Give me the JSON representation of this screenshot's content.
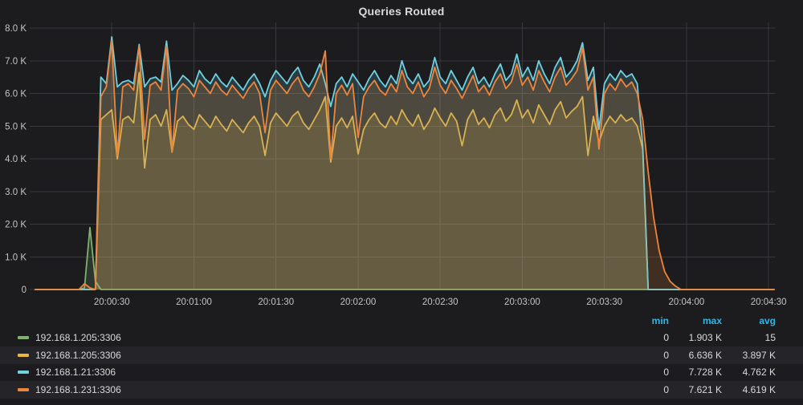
{
  "panel": {
    "title": "Queries Routed"
  },
  "colors": {
    "background": "#1c1c1e",
    "grid": "#39393d",
    "axis_text": "#c3c4c6",
    "legend_header": "#33b5e5",
    "green": "#7EB26D",
    "yellow": "#EAB839",
    "cyan": "#6ED0E0",
    "orange": "#EF843C"
  },
  "chart_data": {
    "type": "area",
    "title": "Queries Routed",
    "xlabel": "",
    "ylabel": "",
    "unit": "K",
    "ylim": [
      0,
      8000
    ],
    "grid": true,
    "legend_position": "bottom-table",
    "x_start_label": "20:00:00",
    "interval_sec": 2,
    "y_ticks": [
      {
        "v": 0,
        "label": "0"
      },
      {
        "v": 1,
        "label": "1.0 K"
      },
      {
        "v": 2,
        "label": "2.0 K"
      },
      {
        "v": 3,
        "label": "3.0 K"
      },
      {
        "v": 4,
        "label": "4.0 K"
      },
      {
        "v": 5,
        "label": "5.0 K"
      },
      {
        "v": 6,
        "label": "6.0 K"
      },
      {
        "v": 7,
        "label": "7.0 K"
      },
      {
        "v": 8,
        "label": "8.0 K"
      }
    ],
    "x_ticks": [
      {
        "t": 30,
        "label": "20:00:30"
      },
      {
        "t": 60,
        "label": "20:01:00"
      },
      {
        "t": 90,
        "label": "20:01:30"
      },
      {
        "t": 120,
        "label": "20:02:00"
      },
      {
        "t": 150,
        "label": "20:02:30"
      },
      {
        "t": 180,
        "label": "20:03:00"
      },
      {
        "t": 210,
        "label": "20:03:30"
      },
      {
        "t": 240,
        "label": "20:04:00"
      },
      {
        "t": 270,
        "label": "20:04:30"
      }
    ],
    "series": [
      {
        "name": "192.168.1.205:3306",
        "color": "#7EB26D",
        "values": [
          null,
          0,
          0,
          0,
          0,
          0,
          0,
          0,
          0,
          0,
          0.05,
          1.9,
          0.25,
          0,
          0,
          0,
          0,
          0,
          0,
          0,
          0,
          0,
          0,
          0,
          0,
          0,
          0,
          0,
          0,
          0,
          0,
          0,
          0,
          0,
          0,
          0,
          0,
          0,
          0,
          0,
          0,
          0,
          0,
          0,
          0,
          0,
          0,
          0,
          0,
          0,
          0,
          0,
          0,
          0,
          0,
          0,
          0,
          0,
          0,
          0,
          0,
          0,
          0,
          0,
          0,
          0,
          0,
          0,
          0,
          0,
          0,
          0,
          0,
          0,
          0,
          0,
          0,
          0,
          0,
          0,
          0,
          0,
          0,
          0,
          0,
          0,
          0,
          0,
          0,
          0,
          0,
          0,
          0,
          0,
          0,
          0,
          0,
          0,
          0,
          0,
          0,
          0,
          0,
          0,
          0,
          0,
          0,
          0,
          0,
          0,
          0,
          0,
          0,
          0,
          0,
          0,
          0,
          0,
          0,
          0,
          0,
          0,
          0,
          0,
          0,
          0,
          0,
          0,
          0,
          0,
          0,
          0,
          0,
          0,
          0,
          0
        ]
      },
      {
        "name": "192.168.1.205:3306",
        "color": "#EAB839",
        "values": [
          null,
          0,
          0,
          0,
          0,
          0,
          0,
          0,
          0,
          0,
          0,
          0,
          0,
          5.2,
          5.35,
          5.5,
          4.0,
          5.2,
          5.3,
          5.1,
          6.64,
          3.72,
          5.2,
          5.35,
          5.0,
          5.5,
          4.2,
          5.15,
          5.3,
          5.05,
          4.9,
          5.35,
          5.15,
          4.95,
          5.3,
          5.05,
          4.85,
          5.2,
          5.0,
          4.8,
          5.1,
          5.3,
          5.0,
          4.1,
          5.1,
          5.4,
          5.2,
          5.0,
          5.3,
          5.45,
          5.1,
          4.9,
          5.2,
          5.5,
          5.9,
          3.9,
          5.0,
          5.25,
          4.95,
          5.3,
          4.15,
          4.9,
          5.2,
          5.4,
          5.1,
          4.95,
          5.3,
          5.05,
          5.5,
          5.2,
          5.0,
          5.35,
          4.9,
          5.15,
          5.55,
          5.25,
          5.0,
          5.4,
          5.15,
          4.4,
          5.2,
          5.5,
          5.05,
          5.25,
          4.95,
          5.35,
          5.55,
          5.15,
          5.35,
          5.8,
          5.25,
          5.5,
          5.1,
          5.65,
          5.35,
          5.05,
          5.5,
          5.75,
          5.25,
          5.45,
          5.6,
          5.9,
          4.1,
          5.3,
          4.5,
          5.0,
          5.3,
          5.1,
          5.35,
          5.15,
          5.25,
          5.0,
          4.3,
          0,
          0,
          0,
          0,
          0,
          0,
          0,
          0,
          0,
          0,
          0,
          0,
          0,
          0,
          0,
          0,
          0,
          0,
          0,
          0,
          0,
          0,
          0,
          0
        ]
      },
      {
        "name": "192.168.1.21:3306",
        "color": "#6ED0E0",
        "values": [
          null,
          0,
          0,
          0,
          0,
          0,
          0,
          0,
          0,
          0,
          0,
          0,
          0,
          6.5,
          6.3,
          7.73,
          6.2,
          6.35,
          6.4,
          6.3,
          7.5,
          6.2,
          6.45,
          6.5,
          6.35,
          7.6,
          6.1,
          6.3,
          6.55,
          6.4,
          6.2,
          6.7,
          6.45,
          6.3,
          6.6,
          6.35,
          6.2,
          6.5,
          6.3,
          6.1,
          6.4,
          6.6,
          6.3,
          5.9,
          6.4,
          6.7,
          6.5,
          6.3,
          6.6,
          6.8,
          6.4,
          6.2,
          6.5,
          6.9,
          6.3,
          5.6,
          6.3,
          6.5,
          6.2,
          6.6,
          6.35,
          6.1,
          6.45,
          6.7,
          6.4,
          6.2,
          6.55,
          6.3,
          7.0,
          6.5,
          6.3,
          6.6,
          6.2,
          6.4,
          7.1,
          6.5,
          6.3,
          6.7,
          6.4,
          6.1,
          6.5,
          6.8,
          6.3,
          6.5,
          6.2,
          6.6,
          6.9,
          6.4,
          6.6,
          7.2,
          6.5,
          6.8,
          6.4,
          7.0,
          6.6,
          6.3,
          6.8,
          7.1,
          6.5,
          6.7,
          7.0,
          7.55,
          6.4,
          6.8,
          4.9,
          6.3,
          6.6,
          6.4,
          6.7,
          6.5,
          6.6,
          6.3,
          4.4,
          0,
          0,
          0,
          0,
          0,
          0,
          0,
          0,
          0,
          0,
          0,
          0,
          0,
          0,
          0,
          0,
          0,
          0,
          0,
          0,
          0,
          0,
          0,
          0
        ]
      },
      {
        "name": "192.168.1.231:3306",
        "color": "#EF843C",
        "values": [
          null,
          0,
          0,
          0,
          0,
          0,
          0,
          0,
          0,
          0,
          0.18,
          0.05,
          0,
          5.9,
          6.2,
          7.62,
          4.1,
          6.2,
          6.3,
          6.1,
          7.45,
          4.6,
          6.25,
          6.35,
          6.1,
          7.45,
          4.2,
          6.1,
          6.3,
          6.15,
          5.9,
          6.4,
          6.2,
          6.0,
          6.35,
          6.1,
          5.95,
          6.25,
          6.05,
          5.85,
          6.15,
          6.35,
          6.0,
          4.8,
          6.1,
          6.4,
          6.2,
          6.0,
          6.3,
          6.5,
          6.1,
          5.9,
          6.2,
          6.6,
          7.3,
          4.0,
          6.0,
          6.25,
          5.95,
          6.3,
          4.65,
          5.9,
          6.2,
          6.4,
          6.1,
          5.95,
          6.3,
          6.05,
          6.7,
          6.2,
          6.0,
          6.35,
          5.9,
          6.15,
          6.8,
          6.25,
          6.0,
          6.4,
          6.15,
          5.85,
          6.2,
          6.55,
          6.05,
          6.25,
          5.95,
          6.35,
          6.6,
          6.15,
          6.35,
          6.9,
          6.25,
          6.5,
          6.1,
          6.7,
          6.35,
          6.05,
          6.5,
          6.8,
          6.25,
          6.45,
          6.7,
          7.4,
          6.1,
          6.5,
          4.3,
          6.0,
          6.3,
          6.1,
          6.45,
          6.2,
          6.35,
          6.0,
          5.2,
          3.6,
          2.2,
          1.2,
          0.55,
          0.25,
          0.1,
          0,
          0,
          0,
          0,
          0,
          0,
          0,
          0,
          0,
          0,
          0,
          0,
          0,
          0,
          0,
          0,
          0,
          0
        ]
      }
    ]
  },
  "legend": {
    "columns": [
      "min",
      "max",
      "avg"
    ],
    "rows": [
      {
        "label": "192.168.1.205:3306",
        "color": "#7EB26D",
        "min": "0",
        "max": "1.903 K",
        "avg": "15"
      },
      {
        "label": "192.168.1.205:3306",
        "color": "#EAB839",
        "min": "0",
        "max": "6.636 K",
        "avg": "3.897 K"
      },
      {
        "label": "192.168.1.21:3306",
        "color": "#6ED0E0",
        "min": "0",
        "max": "7.728 K",
        "avg": "4.762 K"
      },
      {
        "label": "192.168.1.231:3306",
        "color": "#EF843C",
        "min": "0",
        "max": "7.621 K",
        "avg": "4.619 K"
      }
    ]
  }
}
